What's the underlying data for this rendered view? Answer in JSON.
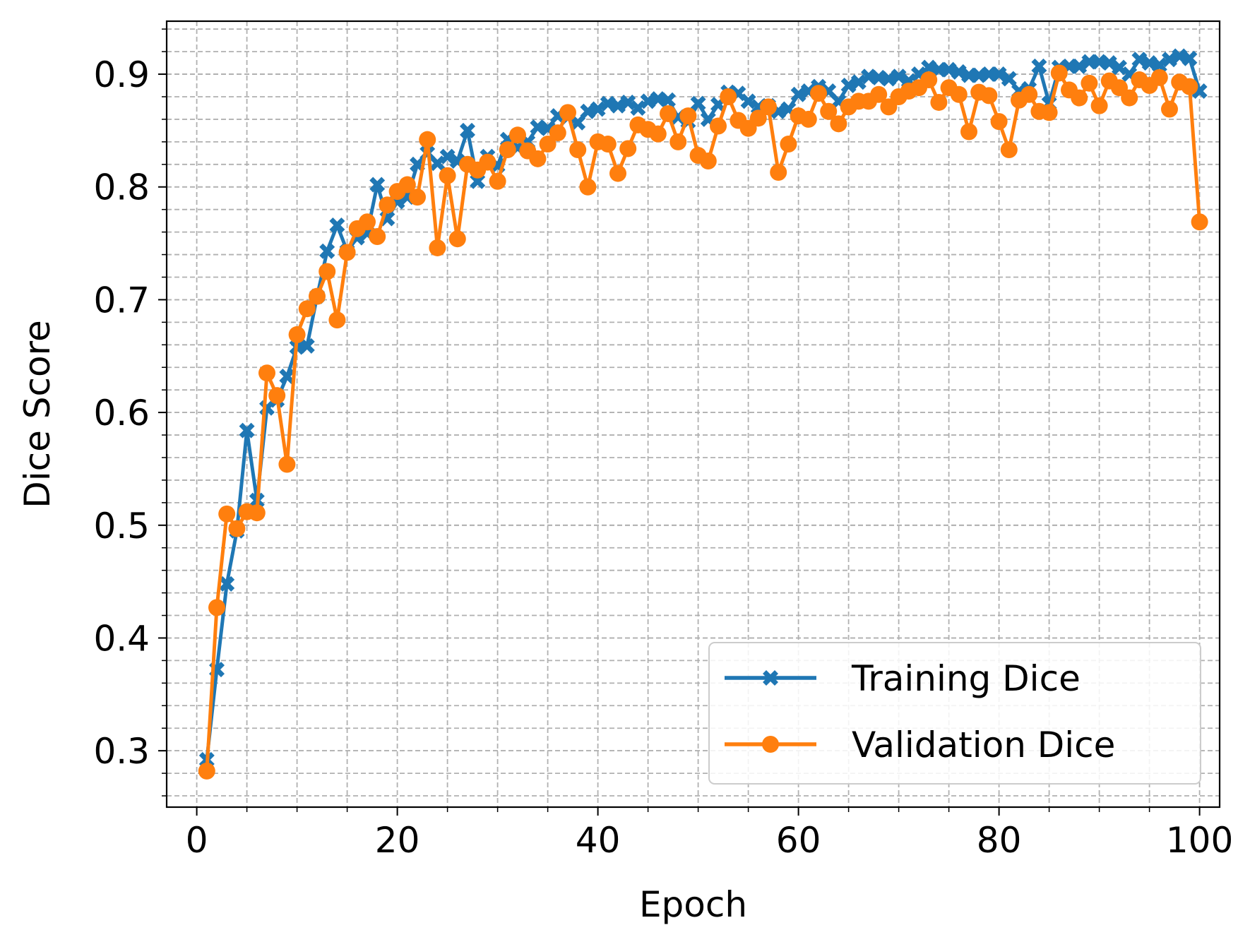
{
  "chart_data": {
    "type": "line",
    "title": "",
    "xlabel": "Epoch",
    "ylabel": "Dice Score",
    "xlim": [
      -3,
      102
    ],
    "ylim": [
      0.25,
      0.947
    ],
    "x_ticks": [
      0,
      20,
      40,
      60,
      80,
      100
    ],
    "x_tick_labels": [
      "0",
      "20",
      "40",
      "60",
      "80",
      "100"
    ],
    "x_minor_step": 5,
    "y_ticks": [
      0.3,
      0.4,
      0.5,
      0.6,
      0.7,
      0.8,
      0.9
    ],
    "y_tick_labels": [
      "0.3",
      "0.4",
      "0.5",
      "0.6",
      "0.7",
      "0.8",
      "0.9"
    ],
    "y_minor_step": 0.02,
    "grid": true,
    "legend_position": "lower right",
    "x": [
      1,
      2,
      3,
      4,
      5,
      6,
      7,
      8,
      9,
      10,
      11,
      12,
      13,
      14,
      15,
      16,
      17,
      18,
      19,
      20,
      21,
      22,
      23,
      24,
      25,
      26,
      27,
      28,
      29,
      30,
      31,
      32,
      33,
      34,
      35,
      36,
      37,
      38,
      39,
      40,
      41,
      42,
      43,
      44,
      45,
      46,
      47,
      48,
      49,
      50,
      51,
      52,
      53,
      54,
      55,
      56,
      57,
      58,
      59,
      60,
      61,
      62,
      63,
      64,
      65,
      66,
      67,
      68,
      69,
      70,
      71,
      72,
      73,
      74,
      75,
      76,
      77,
      78,
      79,
      80,
      81,
      82,
      83,
      84,
      85,
      86,
      87,
      88,
      89,
      90,
      91,
      92,
      93,
      94,
      95,
      96,
      97,
      98,
      99,
      100
    ],
    "series": [
      {
        "name": "Training Dice",
        "color": "#1f77b4",
        "marker": "x",
        "values": [
          0.292,
          0.372,
          0.448,
          0.495,
          0.584,
          0.522,
          0.604,
          0.611,
          0.632,
          0.658,
          0.659,
          0.703,
          0.743,
          0.766,
          0.743,
          0.755,
          0.759,
          0.802,
          0.772,
          0.787,
          0.791,
          0.82,
          0.83,
          0.821,
          0.827,
          0.823,
          0.85,
          0.805,
          0.827,
          0.819,
          0.842,
          0.835,
          0.84,
          0.853,
          0.852,
          0.863,
          0.862,
          0.857,
          0.867,
          0.869,
          0.874,
          0.872,
          0.875,
          0.87,
          0.876,
          0.878,
          0.877,
          0.862,
          0.858,
          0.874,
          0.86,
          0.873,
          0.884,
          0.883,
          0.876,
          0.871,
          0.872,
          0.867,
          0.869,
          0.882,
          0.885,
          0.889,
          0.885,
          0.876,
          0.89,
          0.893,
          0.898,
          0.897,
          0.896,
          0.898,
          0.894,
          0.9,
          0.906,
          0.904,
          0.904,
          0.902,
          0.899,
          0.899,
          0.9,
          0.9,
          0.896,
          0.885,
          0.887,
          0.907,
          0.874,
          0.906,
          0.907,
          0.907,
          0.911,
          0.911,
          0.91,
          0.906,
          0.9,
          0.913,
          0.91,
          0.908,
          0.913,
          0.916,
          0.914,
          0.885
        ]
      },
      {
        "name": "Validation Dice",
        "color": "#ff7f0e",
        "marker": "o",
        "values": [
          0.282,
          0.427,
          0.51,
          0.497,
          0.512,
          0.511,
          0.635,
          0.615,
          0.554,
          0.669,
          0.692,
          0.703,
          0.725,
          0.682,
          0.742,
          0.763,
          0.769,
          0.756,
          0.784,
          0.796,
          0.802,
          0.791,
          0.842,
          0.746,
          0.81,
          0.754,
          0.82,
          0.815,
          0.822,
          0.805,
          0.833,
          0.846,
          0.832,
          0.825,
          0.838,
          0.848,
          0.866,
          0.833,
          0.8,
          0.84,
          0.838,
          0.812,
          0.834,
          0.855,
          0.851,
          0.847,
          0.865,
          0.84,
          0.863,
          0.828,
          0.823,
          0.854,
          0.88,
          0.859,
          0.852,
          0.861,
          0.871,
          0.813,
          0.838,
          0.863,
          0.86,
          0.883,
          0.867,
          0.856,
          0.871,
          0.876,
          0.876,
          0.882,
          0.871,
          0.88,
          0.885,
          0.888,
          0.895,
          0.875,
          0.888,
          0.882,
          0.849,
          0.884,
          0.881,
          0.858,
          0.833,
          0.877,
          0.882,
          0.867,
          0.866,
          0.901,
          0.886,
          0.879,
          0.892,
          0.872,
          0.894,
          0.888,
          0.879,
          0.895,
          0.89,
          0.897,
          0.869,
          0.893,
          0.889,
          0.769
        ]
      }
    ]
  }
}
